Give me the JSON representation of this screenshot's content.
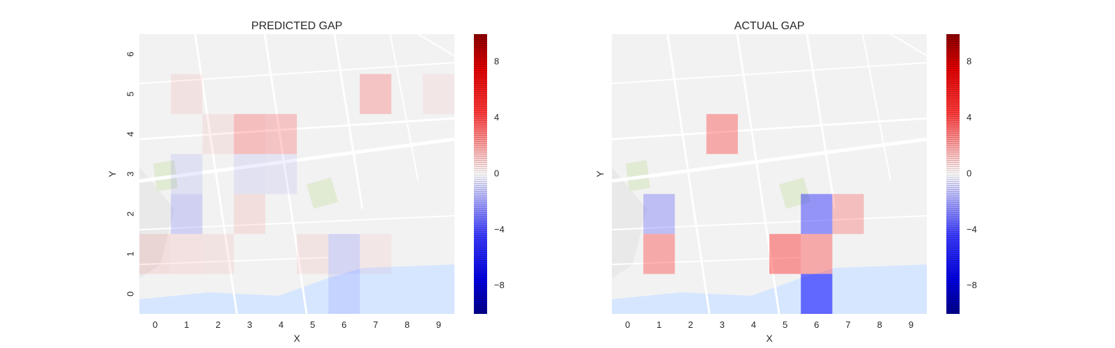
{
  "colors": {
    "positive": "#ff0000",
    "negative": "#0000ff",
    "map_background": "#f2f2f2",
    "water": "#d6e6ff",
    "road": "#ffffff",
    "park": "#e1ead3",
    "colorbar_high": "#8b0000",
    "colorbar_low": "#00008b"
  },
  "chart_data": [
    {
      "type": "heatmap",
      "title": "PREDICTED GAP",
      "xlabel": "X",
      "ylabel": "Y",
      "x_ticks": [
        "0",
        "1",
        "2",
        "3",
        "4",
        "5",
        "6",
        "7",
        "8",
        "9"
      ],
      "y_ticks": [
        "0",
        "1",
        "2",
        "3",
        "4",
        "5",
        "6"
      ],
      "xlim": [
        -0.5,
        9.5
      ],
      "ylim": [
        -0.5,
        6.5
      ],
      "background": "map",
      "cells": [
        {
          "x": 3,
          "y": 4,
          "value": 2.0
        },
        {
          "x": 4,
          "y": 4,
          "value": 1.8
        },
        {
          "x": 7,
          "y": 5,
          "value": 1.8
        },
        {
          "x": 1,
          "y": 2,
          "value": -1.2
        },
        {
          "x": 1,
          "y": 3,
          "value": -0.5
        },
        {
          "x": 3,
          "y": 3,
          "value": -0.4
        },
        {
          "x": 4,
          "y": 3,
          "value": -0.3
        },
        {
          "x": 6,
          "y": 1,
          "value": -1.0
        },
        {
          "x": 6,
          "y": 0,
          "value": -0.6
        },
        {
          "x": 3,
          "y": 2,
          "value": 0.6
        },
        {
          "x": 0,
          "y": 1,
          "value": 0.6
        },
        {
          "x": 1,
          "y": 1,
          "value": 0.5
        },
        {
          "x": 2,
          "y": 1,
          "value": 0.3
        },
        {
          "x": 1,
          "y": 5,
          "value": 0.4
        },
        {
          "x": 2,
          "y": 4,
          "value": 0.3
        },
        {
          "x": 5,
          "y": 1,
          "value": 0.3
        },
        {
          "x": 7,
          "y": 1,
          "value": 0.2
        },
        {
          "x": 9,
          "y": 5,
          "value": 0.2
        }
      ],
      "colorbar": {
        "ticks": [
          8,
          4,
          0,
          -4,
          -8
        ],
        "tick_labels": [
          "8",
          "4",
          "0",
          "−4",
          "−8"
        ],
        "range": [
          -10,
          10
        ]
      }
    },
    {
      "type": "heatmap",
      "title": "ACTUAL GAP",
      "xlabel": "X",
      "ylabel": "Y",
      "x_ticks": [
        "0",
        "1",
        "2",
        "3",
        "4",
        "5",
        "6",
        "7",
        "8",
        "9"
      ],
      "y_ticks": [],
      "xlim": [
        -0.5,
        9.5
      ],
      "ylim": [
        -0.5,
        6.5
      ],
      "background": "map",
      "cells": [
        {
          "x": 3,
          "y": 4,
          "value": 3.0
        },
        {
          "x": 1,
          "y": 2,
          "value": -2.0
        },
        {
          "x": 1,
          "y": 1,
          "value": 3.0
        },
        {
          "x": 5,
          "y": 1,
          "value": 3.8
        },
        {
          "x": 6,
          "y": 1,
          "value": 3.0
        },
        {
          "x": 6,
          "y": 2,
          "value": -4.0
        },
        {
          "x": 7,
          "y": 2,
          "value": 2.0
        },
        {
          "x": 6,
          "y": 0,
          "value": -6.0
        }
      ],
      "colorbar": {
        "ticks": [
          8,
          4,
          0,
          -4,
          -8
        ],
        "tick_labels": [
          "8",
          "4",
          "0",
          "−4",
          "−8"
        ],
        "range": [
          -10,
          10
        ]
      }
    }
  ]
}
